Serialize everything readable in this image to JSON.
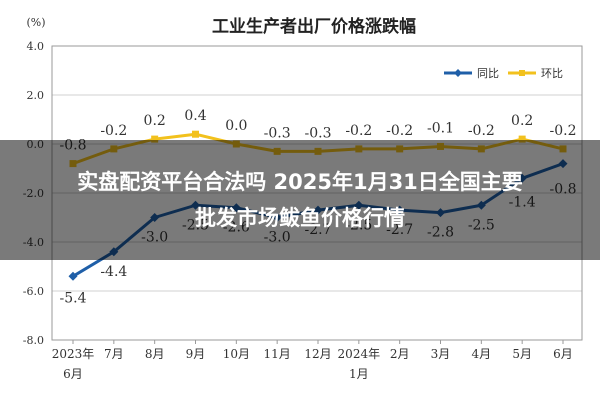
{
  "overlay": {
    "line1": "实盘配资平台合法吗 2025年1月31日全国主要",
    "line2": "批发市场鲅鱼价格行情"
  },
  "chart_data": {
    "type": "line",
    "title": "工业生产者出厂价格涨跌幅",
    "ylabel": "(%)",
    "ylim": [
      -8.0,
      4.0
    ],
    "yticks": [
      "4.0",
      "2.0",
      "0.0",
      "-2.0",
      "-4.0",
      "-6.0",
      "-8.0"
    ],
    "ytick_values": [
      4,
      2,
      0,
      -2,
      -4,
      -6,
      -8
    ],
    "categories": [
      [
        "2023年",
        "6月"
      ],
      [
        "7月"
      ],
      [
        "8月"
      ],
      [
        "9月"
      ],
      [
        "10月"
      ],
      [
        "11月"
      ],
      [
        "12月"
      ],
      [
        "2024年",
        "1月"
      ],
      [
        "2月"
      ],
      [
        "3月"
      ],
      [
        "4月"
      ],
      [
        "5月"
      ],
      [
        "6月"
      ]
    ],
    "series": [
      {
        "name": "同比",
        "color": "#1f5fa8",
        "values": [
          -5.4,
          -4.4,
          -3.0,
          -2.5,
          -2.6,
          -3.0,
          -2.7,
          -2.5,
          -2.7,
          -2.8,
          -2.5,
          -1.4,
          -0.8
        ],
        "labels": [
          "-5.4",
          "-4.4",
          "-3.0",
          "-2.5",
          "-2.6",
          "-3.0",
          "-2.7",
          "-2.5",
          "-2.7",
          "-2.8",
          "-2.5",
          "-1.4",
          "-0.8"
        ]
      },
      {
        "name": "环比",
        "color": "#f2c11d",
        "values": [
          -0.8,
          -0.2,
          0.2,
          0.4,
          0.0,
          -0.3,
          -0.3,
          -0.2,
          -0.2,
          -0.1,
          -0.2,
          0.2,
          -0.2
        ],
        "labels": [
          "-0.8",
          "-0.2",
          "0.2",
          "0.4",
          "0.0",
          "-0.3",
          "-0.3",
          "-0.2",
          "-0.2",
          "-0.1",
          "-0.2",
          "0.2",
          "-0.2"
        ]
      }
    ],
    "legend": "top-right",
    "grid": true
  }
}
